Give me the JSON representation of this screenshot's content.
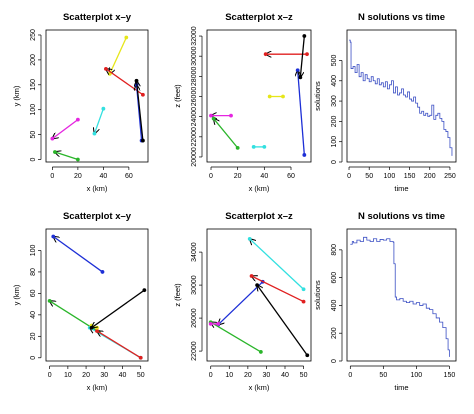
{
  "figure": {
    "arrow_color": "#000000",
    "line_color": "#3b4fc4"
  },
  "chart_data": [
    {
      "type": "scatter",
      "title": "Scatterplot x–y",
      "xlabel": "x (km)",
      "ylabel": "y (km)",
      "xlim": [
        -5,
        75
      ],
      "ylim": [
        -5,
        260
      ],
      "xticks": [
        0,
        20,
        40,
        60
      ],
      "yticks": [
        0,
        50,
        100,
        150,
        200,
        250
      ],
      "segments": [
        {
          "color": "#e526e0",
          "x": [
            0,
            20
          ],
          "y": [
            42,
            80
          ],
          "arrow": "start"
        },
        {
          "color": "#2ab52a",
          "x": [
            2,
            20
          ],
          "y": [
            15,
            0
          ],
          "arrow": "start"
        },
        {
          "color": "#33e0e0",
          "x": [
            33,
            40
          ],
          "y": [
            52,
            102
          ],
          "arrow": "start"
        },
        {
          "color": "#e6e619",
          "x": [
            58,
            45
          ],
          "y": [
            245,
            172
          ],
          "arrow": "end"
        },
        {
          "color": "#e02020",
          "x": [
            42,
            71
          ],
          "y": [
            182,
            130
          ],
          "arrow": "start"
        },
        {
          "color": "#1d2fd6",
          "x": [
            66,
            70
          ],
          "y": [
            150,
            38
          ],
          "arrow": "start"
        },
        {
          "color": "#000000",
          "x": [
            71,
            66
          ],
          "y": [
            38,
            158
          ],
          "arrow": "end"
        }
      ]
    },
    {
      "type": "scatter",
      "title": "Scatterplot x–z",
      "xlabel": "x (km)",
      "ylabel": "z (feet)",
      "xlim": [
        -3,
        75
      ],
      "ylim": [
        19500,
        32600
      ],
      "xticks": [
        0,
        20,
        40,
        60
      ],
      "yticks": [
        20000,
        22000,
        24000,
        26000,
        28000,
        30000,
        32000
      ],
      "segments": [
        {
          "color": "#e526e0",
          "x": [
            0,
            15
          ],
          "y": [
            24100,
            24100
          ],
          "arrow": "start"
        },
        {
          "color": "#2ab52a",
          "x": [
            2,
            20
          ],
          "y": [
            23800,
            20900
          ],
          "arrow": "start"
        },
        {
          "color": "#33e0e0",
          "x": [
            32,
            40
          ],
          "y": [
            21000,
            21000
          ],
          "arrow": "none"
        },
        {
          "color": "#e6e619",
          "x": [
            44,
            54
          ],
          "y": [
            26000,
            26000
          ],
          "arrow": "none"
        },
        {
          "color": "#e02020",
          "x": [
            41,
            72
          ],
          "y": [
            30200,
            30200
          ],
          "arrow": "start"
        },
        {
          "color": "#1d2fd6",
          "x": [
            70,
            65
          ],
          "y": [
            20200,
            28600
          ],
          "arrow": "end"
        },
        {
          "color": "#000000",
          "x": [
            70,
            67
          ],
          "y": [
            32000,
            27900
          ],
          "arrow": "end"
        }
      ]
    },
    {
      "type": "line",
      "title": "N solutions vs time",
      "xlabel": "time",
      "ylabel": "solutions",
      "xlim": [
        -5,
        265
      ],
      "ylim": [
        0,
        650
      ],
      "xticks": [
        0,
        50,
        100,
        150,
        200,
        250
      ],
      "yticks": [
        0,
        100,
        200,
        300,
        400,
        500
      ],
      "series": [
        {
          "x": [
            0,
            3,
            5,
            10,
            15,
            20,
            25,
            30,
            35,
            40,
            45,
            50,
            55,
            60,
            65,
            70,
            75,
            80,
            85,
            90,
            95,
            100,
            105,
            110,
            115,
            120,
            125,
            130,
            135,
            140,
            145,
            150,
            155,
            160,
            165,
            170,
            175,
            180,
            185,
            190,
            195,
            200,
            205,
            210,
            215,
            220,
            225,
            230,
            235,
            240,
            245,
            250,
            255
          ],
          "y": [
            600,
            590,
            460,
            470,
            440,
            480,
            420,
            440,
            400,
            430,
            410,
            395,
            420,
            400,
            385,
            410,
            380,
            390,
            370,
            395,
            360,
            380,
            400,
            340,
            370,
            330,
            340,
            360,
            330,
            320,
            345,
            310,
            300,
            320,
            290,
            270,
            240,
            250,
            230,
            240,
            225,
            230,
            280,
            210,
            230,
            240,
            215,
            200,
            160,
            150,
            120,
            70,
            30
          ]
        }
      ]
    },
    {
      "type": "scatter",
      "title": "Scatterplot x–y",
      "xlabel": "x (km)",
      "ylabel": "y (km)",
      "xlim": [
        -2,
        54
      ],
      "ylim": [
        -3,
        120
      ],
      "xticks": [
        0,
        10,
        20,
        30,
        40,
        50
      ],
      "yticks": [
        0,
        20,
        40,
        60,
        80,
        100
      ],
      "segments": [
        {
          "color": "#1d2fd6",
          "x": [
            29,
            2
          ],
          "y": [
            80,
            113
          ],
          "arrow": "end"
        },
        {
          "color": "#2ab52a",
          "x": [
            0,
            27
          ],
          "y": [
            53,
            24
          ],
          "arrow": "start"
        },
        {
          "color": "#33e0e0",
          "x": [
            22,
            50
          ],
          "y": [
            28,
            0
          ],
          "arrow": "start"
        },
        {
          "color": "#e02020",
          "x": [
            50,
            26
          ],
          "y": [
            0,
            25
          ],
          "arrow": "end"
        },
        {
          "color": "#e6e619",
          "x": [
            23,
            26
          ],
          "y": [
            30,
            28
          ],
          "arrow": "none"
        },
        {
          "color": "#000000",
          "x": [
            52,
            23
          ],
          "y": [
            63,
            28
          ],
          "arrow": "end"
        }
      ]
    },
    {
      "type": "scatter",
      "title": "Scatterplot x–z",
      "xlabel": "x (km)",
      "ylabel": "z (feet)",
      "xlim": [
        -2,
        54
      ],
      "ylim": [
        20800,
        36800
      ],
      "xticks": [
        0,
        10,
        20,
        30,
        40,
        50
      ],
      "yticks": [
        22000,
        26000,
        30000,
        34000
      ],
      "segments": [
        {
          "color": "#1d2fd6",
          "x": [
            28,
            4
          ],
          "y": [
            30400,
            25200
          ],
          "arrow": "end"
        },
        {
          "color": "#2ab52a",
          "x": [
            0,
            27
          ],
          "y": [
            25500,
            21900
          ],
          "arrow": "start"
        },
        {
          "color": "#33e0e0",
          "x": [
            21,
            50
          ],
          "y": [
            35600,
            29500
          ],
          "arrow": "start"
        },
        {
          "color": "#e02020",
          "x": [
            50,
            22
          ],
          "y": [
            28000,
            31100
          ],
          "arrow": "end"
        },
        {
          "color": "#e526e0",
          "x": [
            0,
            4
          ],
          "y": [
            25300,
            25300
          ],
          "arrow": "none"
        },
        {
          "color": "#000000",
          "x": [
            52,
            25
          ],
          "y": [
            21500,
            30000
          ],
          "arrow": "end"
        }
      ]
    },
    {
      "type": "line",
      "title": "N solutions vs time",
      "xlabel": "time",
      "ylabel": "solutions",
      "xlim": [
        -5,
        160
      ],
      "ylim": [
        0,
        950
      ],
      "xticks": [
        0,
        50,
        100,
        150
      ],
      "yticks": [
        0,
        200,
        400,
        600,
        800
      ],
      "series": [
        {
          "x": [
            0,
            3,
            5,
            10,
            15,
            20,
            25,
            30,
            35,
            40,
            45,
            50,
            55,
            60,
            65,
            66,
            68,
            70,
            75,
            80,
            85,
            90,
            95,
            100,
            105,
            110,
            115,
            120,
            125,
            130,
            135,
            140,
            145,
            148,
            150
          ],
          "y": [
            840,
            860,
            850,
            870,
            860,
            890,
            870,
            860,
            880,
            860,
            875,
            870,
            880,
            860,
            855,
            700,
            460,
            440,
            450,
            430,
            420,
            430,
            410,
            420,
            400,
            410,
            380,
            370,
            340,
            310,
            280,
            240,
            160,
            80,
            30
          ]
        }
      ]
    }
  ]
}
